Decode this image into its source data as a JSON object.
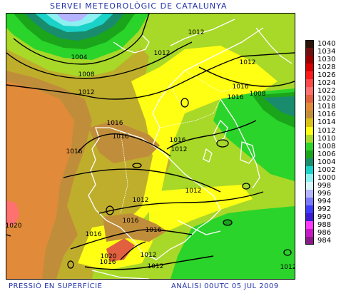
{
  "header": {
    "title": "SERVEI  METEOROLÒGIC  DE  CATALUNYA"
  },
  "footer": {
    "left": "PRESSIÓ EN SUPERFÍCIE",
    "right": "ANÀLISI 00UTC 05 JUL 2009"
  },
  "legend": [
    {
      "label": "1040",
      "color": "#2a1408"
    },
    {
      "label": "1034",
      "color": "#6e1010"
    },
    {
      "label": "1030",
      "color": "#9a0000"
    },
    {
      "label": "1028",
      "color": "#d40000"
    },
    {
      "label": "1026",
      "color": "#ff1a1a"
    },
    {
      "label": "1024",
      "color": "#ff4848"
    },
    {
      "label": "1022",
      "color": "#ff7070"
    },
    {
      "label": "1020",
      "color": "#e06040"
    },
    {
      "label": "1018",
      "color": "#e08a3a"
    },
    {
      "label": "1016",
      "color": "#c08e3a"
    },
    {
      "label": "1014",
      "color": "#d8c018"
    },
    {
      "label": "1012",
      "color": "#ffff14"
    },
    {
      "label": "1010",
      "color": "#a8d828"
    },
    {
      "label": "1008",
      "color": "#2ad42a"
    },
    {
      "label": "1006",
      "color": "#1aa51a"
    },
    {
      "label": "1004",
      "color": "#1a8c6e"
    },
    {
      "label": "1002",
      "color": "#1ad2c8"
    },
    {
      "label": "1000",
      "color": "#8ef0f0"
    },
    {
      "label": "998",
      "color": "#d8f6fa"
    },
    {
      "label": "996",
      "color": "#b4b4ff"
    },
    {
      "label": "994",
      "color": "#7a7aff"
    },
    {
      "label": "992",
      "color": "#3c3cff"
    },
    {
      "label": "990",
      "color": "#3a1ad2"
    },
    {
      "label": "988",
      "color": "#ff38ff"
    },
    {
      "label": "986",
      "color": "#c61ac6"
    },
    {
      "label": "984",
      "color": "#8a1a8a"
    }
  ],
  "map": {
    "isobar_labels": [
      "1012",
      "1012",
      "1012",
      "1004",
      "1008",
      "1016",
      "1008",
      "1012",
      "1016",
      "1016",
      "1016",
      "1016",
      "1016",
      "1012",
      "1012",
      "1012",
      "1016",
      "1016",
      "1016",
      "1020",
      "1016",
      "1012",
      "1012",
      "1012",
      "1020"
    ]
  }
}
